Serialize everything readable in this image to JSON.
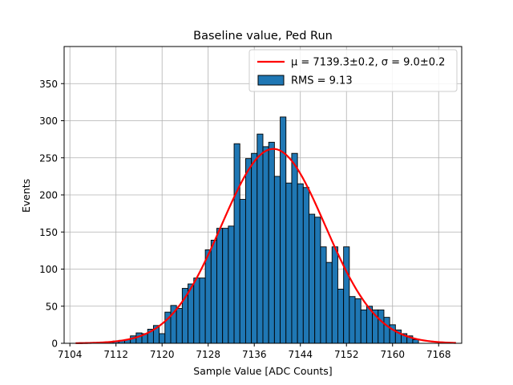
{
  "chart_data": {
    "type": "bar",
    "title": "Baseline value, Ped Run",
    "xlabel": "Sample Value [ADC Counts]",
    "ylabel": "Events",
    "xlim": [
      7103.0,
      7172.0
    ],
    "ylim": [
      0,
      400
    ],
    "xticks": [
      7104,
      7112,
      7120,
      7128,
      7136,
      7144,
      7152,
      7160,
      7168
    ],
    "yticks": [
      0,
      50,
      100,
      150,
      200,
      250,
      300,
      350
    ],
    "grid": true,
    "legend_position": "upper-right",
    "bin_width": 1,
    "bins": {
      "x": [
        7110,
        7111,
        7112,
        7113,
        7114,
        7115,
        7116,
        7117,
        7118,
        7119,
        7120,
        7121,
        7122,
        7123,
        7124,
        7125,
        7126,
        7127,
        7128,
        7129,
        7130,
        7131,
        7132,
        7133,
        7134,
        7135,
        7136,
        7137,
        7138,
        7139,
        7140,
        7141,
        7142,
        7143,
        7144,
        7145,
        7146,
        7147,
        7148,
        7149,
        7150,
        7151,
        7152,
        7153,
        7154,
        7155,
        7156,
        7157,
        7158,
        7159,
        7160,
        7161,
        7162,
        7163,
        7164
      ],
      "values": [
        1,
        2,
        3,
        4,
        5,
        10,
        14,
        13,
        19,
        24,
        13,
        42,
        51,
        47,
        74,
        80,
        88,
        88,
        126,
        139,
        155,
        155,
        158,
        269,
        194,
        249,
        256,
        282,
        265,
        271,
        225,
        305,
        216,
        256,
        215,
        210,
        174,
        170,
        130,
        109,
        130,
        73,
        130,
        63,
        60,
        45,
        50,
        45,
        45,
        35,
        25,
        18,
        13,
        10,
        5
      ]
    },
    "series": [
      {
        "name": "RMS = 9.13",
        "kind": "histogram",
        "color": "#1f77b4",
        "edgecolor": "#000000"
      },
      {
        "name_prefix": "μ = 7139.3±0.2, σ = 9.0±0.2",
        "kind": "gaussian-fit",
        "color": "#ff0000",
        "mu": 7139.3,
        "sigma": 9.0,
        "amplitude": 262,
        "range": [
          7105,
          7171
        ]
      }
    ]
  },
  "legend": {
    "fit_label": "μ = 7139.3±0.2, σ = 9.0±0.2",
    "hist_label": "RMS = 9.13"
  }
}
